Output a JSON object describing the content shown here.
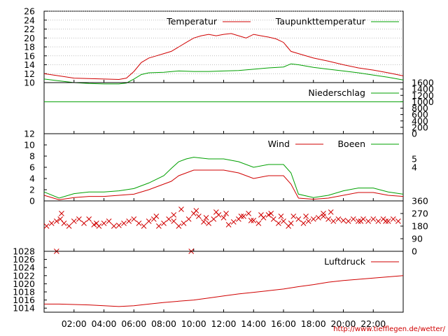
{
  "chart_data": [
    {
      "type": "line",
      "legend_placement": "top-right",
      "xlim": [
        "00:00",
        "24:00"
      ],
      "ylim": [
        10,
        26
      ],
      "grid": true,
      "yticks": [
        "10",
        "12",
        "14",
        "16",
        "18",
        "20",
        "22",
        "24",
        "26"
      ],
      "series": [
        {
          "name": "Temperatur",
          "color": "#d00000",
          "x": [
            "00:00",
            "01:00",
            "02:00",
            "03:00",
            "04:00",
            "05:00",
            "05:30",
            "06:00",
            "06:30",
            "07:00",
            "07:30",
            "08:00",
            "08:30",
            "09:00",
            "09:30",
            "10:00",
            "10:30",
            "11:00",
            "11:30",
            "12:00",
            "12:30",
            "13:00",
            "13:30",
            "14:00",
            "14:30",
            "15:00",
            "15:30",
            "16:00",
            "16:15",
            "16:30",
            "17:00",
            "18:00",
            "19:00",
            "20:00",
            "21:00",
            "22:00",
            "23:00",
            "24:00"
          ],
          "values": [
            12.0,
            11.5,
            11.0,
            10.9,
            10.8,
            10.7,
            11.0,
            12.5,
            14.5,
            15.5,
            16.0,
            16.5,
            17.0,
            18.0,
            19.0,
            20.0,
            20.5,
            20.8,
            20.5,
            20.8,
            21.0,
            20.5,
            20.0,
            20.8,
            20.5,
            20.2,
            19.8,
            19.0,
            18.0,
            17.0,
            16.5,
            15.5,
            14.8,
            14.0,
            13.3,
            12.8,
            12.2,
            11.5
          ]
        },
        {
          "name": "Taupunkttemperatur",
          "color": "#00a000",
          "x": [
            "00:00",
            "01:00",
            "02:00",
            "03:00",
            "04:00",
            "05:00",
            "05:30",
            "06:00",
            "06:30",
            "07:00",
            "08:00",
            "09:00",
            "10:00",
            "11:00",
            "12:00",
            "13:00",
            "14:00",
            "15:00",
            "16:00",
            "16:30",
            "17:00",
            "18:00",
            "19:00",
            "20:00",
            "21:00",
            "22:00",
            "23:00",
            "24:00"
          ],
          "values": [
            10.8,
            10.4,
            10.0,
            9.8,
            9.7,
            9.7,
            9.9,
            10.8,
            11.8,
            12.2,
            12.3,
            12.6,
            12.5,
            12.5,
            12.6,
            12.7,
            13.0,
            13.3,
            13.5,
            14.2,
            14.0,
            13.4,
            13.0,
            12.6,
            12.2,
            11.7,
            11.2,
            10.6
          ]
        }
      ]
    },
    {
      "type": "line",
      "legend_placement": "top-right",
      "xlim": [
        "00:00",
        "24:00"
      ],
      "ylim": [
        0,
        1600
      ],
      "grid": false,
      "yticks": [
        "0",
        "200",
        "400",
        "600",
        "800",
        "1000",
        "1200",
        "1400",
        "1600"
      ],
      "series": [
        {
          "name": "Niederschlag",
          "color": "#00a000",
          "x": [
            "00:00",
            "24:00"
          ],
          "values": [
            1000,
            1000
          ]
        }
      ]
    },
    {
      "type": "line",
      "legend_placement": "top-right",
      "xlim": [
        "00:00",
        "24:00"
      ],
      "ylim": [
        0,
        12
      ],
      "grid": false,
      "yticks": [
        "0",
        "2",
        "4",
        "6",
        "8",
        "10",
        "12"
      ],
      "right_ticks": [
        "4",
        "5"
      ],
      "series": [
        {
          "name": "Wind",
          "color": "#d00000",
          "x": [
            "00:00",
            "01:00",
            "02:00",
            "03:00",
            "04:00",
            "05:00",
            "06:00",
            "07:00",
            "08:00",
            "08:30",
            "09:00",
            "09:30",
            "10:00",
            "11:00",
            "12:00",
            "13:00",
            "14:00",
            "15:00",
            "16:00",
            "16:30",
            "17:00",
            "18:00",
            "19:00",
            "20:00",
            "21:00",
            "22:00",
            "23:00",
            "24:00"
          ],
          "values": [
            1.0,
            0.2,
            0.6,
            0.8,
            0.8,
            1.0,
            1.2,
            2.0,
            3.0,
            3.5,
            4.5,
            5.0,
            5.5,
            5.5,
            5.5,
            5.0,
            4.0,
            4.5,
            4.5,
            3.0,
            0.5,
            0.3,
            0.5,
            1.0,
            1.5,
            1.5,
            1.0,
            0.8
          ]
        },
        {
          "name": "Boeen",
          "color": "#00a000",
          "x": [
            "00:00",
            "01:00",
            "02:00",
            "03:00",
            "04:00",
            "05:00",
            "06:00",
            "07:00",
            "08:00",
            "08:30",
            "09:00",
            "09:30",
            "10:00",
            "11:00",
            "12:00",
            "13:00",
            "14:00",
            "15:00",
            "16:00",
            "16:30",
            "17:00",
            "18:00",
            "19:00",
            "20:00",
            "21:00",
            "22:00",
            "23:00",
            "24:00"
          ],
          "values": [
            1.6,
            0.5,
            1.3,
            1.6,
            1.6,
            1.8,
            2.2,
            3.2,
            4.5,
            5.8,
            7.0,
            7.5,
            7.8,
            7.5,
            7.5,
            7.0,
            6.0,
            6.5,
            6.5,
            5.0,
            1.2,
            0.6,
            1.0,
            1.8,
            2.3,
            2.3,
            1.6,
            1.2
          ]
        }
      ]
    },
    {
      "type": "scatter",
      "xlim": [
        "00:00",
        "24:00"
      ],
      "ylim": [
        0,
        360
      ],
      "grid": false,
      "yticks": [
        "0",
        "90",
        "180",
        "270",
        "360"
      ],
      "series": [
        {
          "name": "",
          "color": "#d00000",
          "x": [
            "00:10",
            "00:30",
            "00:50",
            "01:05",
            "01:20",
            "01:40",
            "02:00",
            "02:20",
            "02:40",
            "03:00",
            "03:20",
            "03:40",
            "04:00",
            "04:20",
            "04:40",
            "05:00",
            "05:20",
            "05:40",
            "06:00",
            "06:20",
            "06:40",
            "07:00",
            "07:20",
            "07:40",
            "08:00",
            "08:20",
            "08:40",
            "09:00",
            "09:20",
            "09:40",
            "10:00",
            "10:20",
            "10:40",
            "11:00",
            "11:20",
            "11:40",
            "12:00",
            "12:20",
            "12:40",
            "13:00",
            "13:20",
            "13:40",
            "14:00",
            "14:20",
            "14:40",
            "15:00",
            "15:20",
            "15:40",
            "16:00",
            "16:20",
            "16:40",
            "17:00",
            "17:20",
            "17:40",
            "18:00",
            "18:20",
            "18:40",
            "19:00",
            "19:20",
            "19:40",
            "20:00",
            "20:20",
            "20:40",
            "21:00",
            "21:20",
            "21:40",
            "22:00",
            "22:20",
            "22:40",
            "23:00",
            "23:20",
            "23:40",
            "00:50",
            "09:50",
            "01:10",
            "03:30",
            "07:30",
            "08:40",
            "09:10",
            "10:10",
            "10:50",
            "11:30",
            "12:10",
            "13:10",
            "13:50",
            "14:30",
            "15:10",
            "15:50",
            "16:30",
            "17:30",
            "18:40",
            "19:10",
            "21:10",
            "22:50"
          ],
          "values": [
            180,
            200,
            215,
            230,
            200,
            180,
            215,
            230,
            200,
            230,
            190,
            180,
            200,
            215,
            180,
            185,
            200,
            215,
            230,
            200,
            180,
            215,
            230,
            180,
            200,
            230,
            215,
            180,
            200,
            230,
            270,
            250,
            210,
            200,
            230,
            260,
            240,
            190,
            210,
            230,
            250,
            270,
            220,
            200,
            240,
            260,
            230,
            200,
            215,
            180,
            250,
            230,
            200,
            215,
            230,
            240,
            250,
            230,
            215,
            230,
            220,
            215,
            230,
            215,
            230,
            215,
            230,
            215,
            230,
            215,
            230,
            215,
            0,
            0,
            270,
            200,
            250,
            260,
            300,
            290,
            240,
            280,
            270,
            250,
            220,
            260,
            270,
            250,
            200,
            250,
            270,
            280,
            215,
            215
          ]
        }
      ]
    },
    {
      "type": "line",
      "legend_placement": "top-right",
      "xlim": [
        "00:00",
        "24:00"
      ],
      "ylim": [
        1013,
        1028
      ],
      "grid": false,
      "xticks": [
        "02:00",
        "04:00",
        "06:00",
        "08:00",
        "10:00",
        "12:00",
        "14:00",
        "16:00",
        "18:00",
        "20:00",
        "22:00"
      ],
      "yticks": [
        "1014",
        "1016",
        "1018",
        "1020",
        "1022",
        "1024",
        "1026",
        "1028"
      ],
      "series": [
        {
          "name": "Luftdruck",
          "color": "#d00000",
          "x": [
            "00:00",
            "01:00",
            "02:00",
            "03:00",
            "04:00",
            "05:00",
            "06:00",
            "07:00",
            "08:00",
            "09:00",
            "10:00",
            "11:00",
            "12:00",
            "13:00",
            "14:00",
            "15:00",
            "16:00",
            "17:00",
            "18:00",
            "19:00",
            "20:00",
            "21:00",
            "22:00",
            "23:00",
            "24:00"
          ],
          "values": [
            1015.0,
            1015.0,
            1014.9,
            1014.8,
            1014.6,
            1014.4,
            1014.6,
            1015.0,
            1015.4,
            1015.7,
            1016.0,
            1016.5,
            1017.0,
            1017.5,
            1017.9,
            1018.3,
            1018.7,
            1019.3,
            1019.8,
            1020.4,
            1020.8,
            1021.1,
            1021.4,
            1021.7,
            1022.0
          ]
        }
      ]
    }
  ],
  "footer": {
    "url": "http://www.tiefflegen.de/wetter/"
  }
}
